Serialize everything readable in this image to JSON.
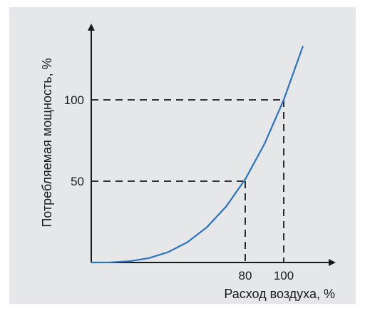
{
  "chart_data": {
    "type": "line",
    "xlabel": "Расход воздуха, %",
    "ylabel": "Потребляемая мощность, %",
    "x_ticks": [
      80,
      100
    ],
    "y_ticks": [
      50,
      100
    ],
    "xlim": [
      0,
      110
    ],
    "ylim": [
      0,
      125
    ],
    "series": [
      {
        "x": [
          0,
          10,
          20,
          30,
          40,
          50,
          60,
          70,
          80,
          90,
          100,
          110
        ],
        "y": [
          0,
          0.1,
          0.8,
          2.7,
          6.4,
          12.5,
          21.6,
          34.3,
          51.2,
          72.9,
          100,
          133.1
        ]
      }
    ],
    "reference_lines": [
      {
        "x": 80,
        "y": 50
      },
      {
        "x": 100,
        "y": 100
      }
    ],
    "colors": {
      "curve": "#2a73c0",
      "axes": "#1a1a1a",
      "background": "#e6e7e8"
    }
  }
}
